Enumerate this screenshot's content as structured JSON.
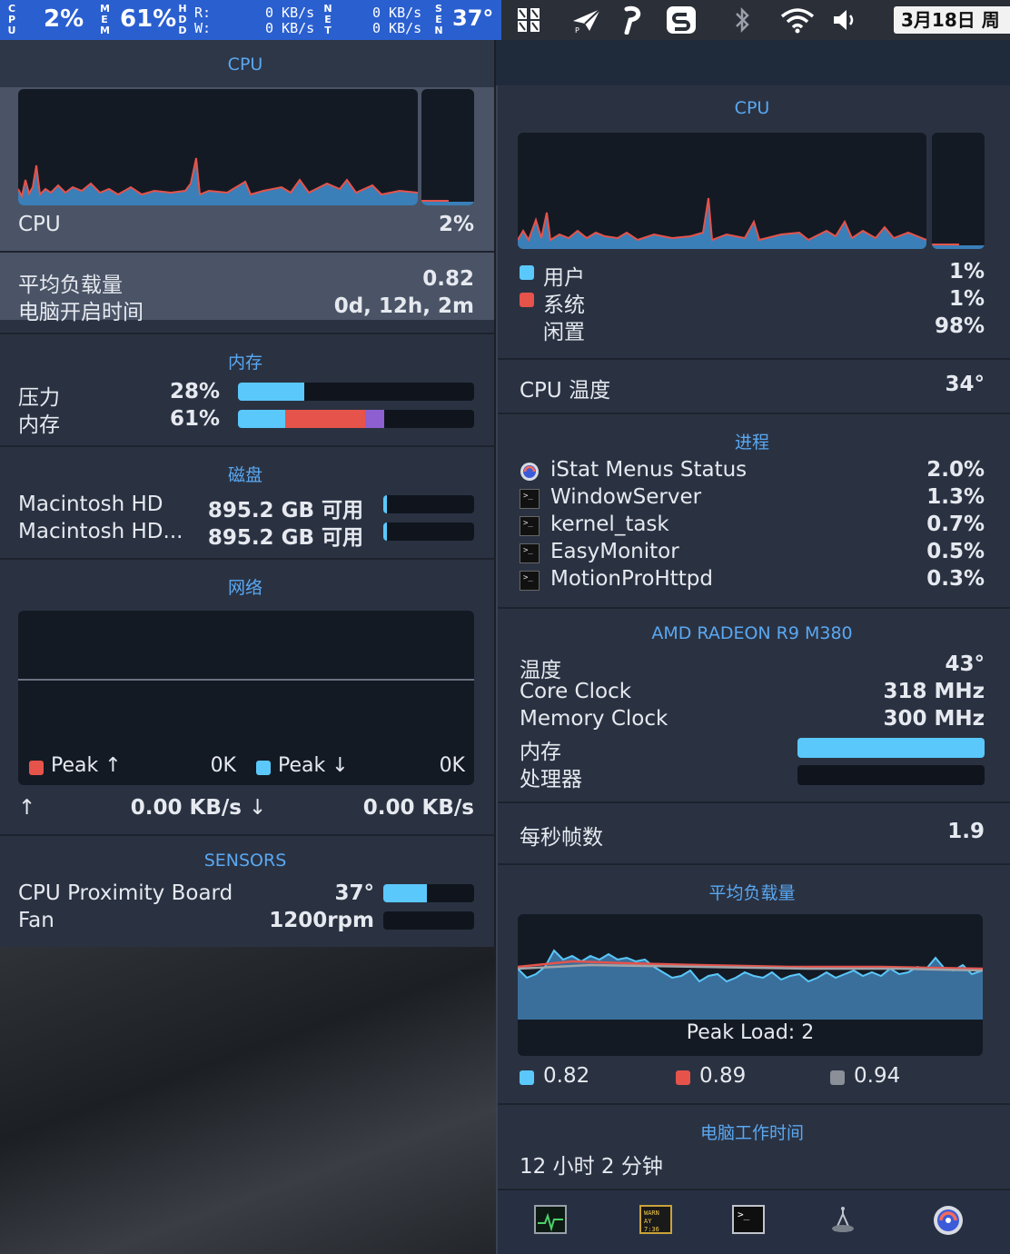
{
  "menubar": {
    "cpu_label": [
      "C",
      "P",
      "U"
    ],
    "cpu_value": "2%",
    "mem_label": [
      "M",
      "E",
      "M"
    ],
    "mem_value": "61%",
    "hdd_label": [
      "H",
      "D",
      "D"
    ],
    "hdd_r_label": "R:",
    "hdd_w_label": "W:",
    "hdd_r_value": "0 KB/s",
    "hdd_w_value": "0 KB/s",
    "net_label": [
      "N",
      "E",
      "T"
    ],
    "net_up": "0 KB/s",
    "net_down": "0 KB/s",
    "sen_label": [
      "S",
      "E",
      "N"
    ],
    "sen_value": "37°",
    "date": "3月18日 周"
  },
  "left": {
    "cpu": {
      "title": "CPU",
      "label": "CPU",
      "value": "2%"
    },
    "load": {
      "label": "平均负载量",
      "value": "0.82",
      "uptime_label": "电脑开启时间",
      "uptime_value": "0d, 12h, 2m"
    },
    "memory": {
      "title": "内存",
      "rows": [
        {
          "label": "压力",
          "value": "28%",
          "fraction": 0.28
        },
        {
          "label": "内存",
          "value": "61%"
        }
      ],
      "segments": [
        {
          "fraction": 0.2,
          "color": "#5ac8fa"
        },
        {
          "fraction": 0.34,
          "color": "#e5534b"
        },
        {
          "fraction": 0.08,
          "color": "#8e5fd0"
        }
      ]
    },
    "disk": {
      "title": "磁盘",
      "rows": [
        {
          "label": "Macintosh HD",
          "value": "895.2 GB 可用",
          "fraction": 0.04
        },
        {
          "label": "Macintosh HD...",
          "value": "895.2 GB 可用",
          "fraction": 0.04
        }
      ]
    },
    "network": {
      "title": "网络",
      "peak_up_label": "Peak ↑",
      "peak_up_value": "0K",
      "peak_down_label": "Peak ↓",
      "peak_down_value": "0K",
      "up_arrow": "↑",
      "up_rate": "0.00 KB/s",
      "down_arrow": "↓",
      "down_rate": "0.00 KB/s"
    },
    "sensors": {
      "title": "SENSORS",
      "rows": [
        {
          "label": "CPU Proximity Board",
          "value": "37°",
          "fraction": 0.48
        },
        {
          "label": "Fan",
          "value": "1200rpm",
          "fraction": 0.0
        }
      ]
    }
  },
  "right": {
    "cpu": {
      "title": "CPU",
      "rows": [
        {
          "label": "用户",
          "value": "1%",
          "color": "#5ac8fa"
        },
        {
          "label": "系统",
          "value": "1%",
          "color": "#e5534b"
        },
        {
          "label": "闲置",
          "value": "98%",
          "color": "#2b3140"
        }
      ]
    },
    "temp": {
      "label": "CPU 温度",
      "value": "34°"
    },
    "processes": {
      "title": "进程",
      "rows": [
        {
          "name": "iStat Menus Status",
          "value": "2.0%",
          "icon": "istat-app-icon"
        },
        {
          "name": "WindowServer",
          "value": "1.3%",
          "icon": "terminal-icon"
        },
        {
          "name": "kernel_task",
          "value": "0.7%",
          "icon": "terminal-icon"
        },
        {
          "name": "EasyMonitor",
          "value": "0.5%",
          "icon": "terminal-icon"
        },
        {
          "name": "MotionProHttpd",
          "value": "0.3%",
          "icon": "terminal-icon"
        }
      ]
    },
    "gpu": {
      "title": "AMD RADEON R9 M380",
      "temp_label": "温度",
      "temp_value": "43°",
      "core_label": "Core Clock",
      "core_value": "318 MHz",
      "mem_label": "Memory Clock",
      "mem_value": "300 MHz",
      "vram_label": "内存",
      "vram_fraction": 1.0,
      "proc_label": "处理器",
      "proc_fraction": 0.0
    },
    "fps": {
      "label": "每秒帧数",
      "value": "1.9"
    },
    "load": {
      "title": "平均负载量",
      "peak_label": "Peak Load: 2",
      "legend": [
        {
          "value": "0.82",
          "color": "#5ac8fa"
        },
        {
          "value": "0.89",
          "color": "#e5534b"
        },
        {
          "value": "0.94",
          "color": "#8a8f98"
        }
      ]
    },
    "uptime": {
      "title": "电脑工作时间",
      "value": "12 小时 2 分钟"
    },
    "dock": {
      "icons": [
        "activity-monitor-icon",
        "console-icon",
        "terminal-icon",
        "disk-utility-icon",
        "istat-app-icon"
      ]
    }
  }
}
